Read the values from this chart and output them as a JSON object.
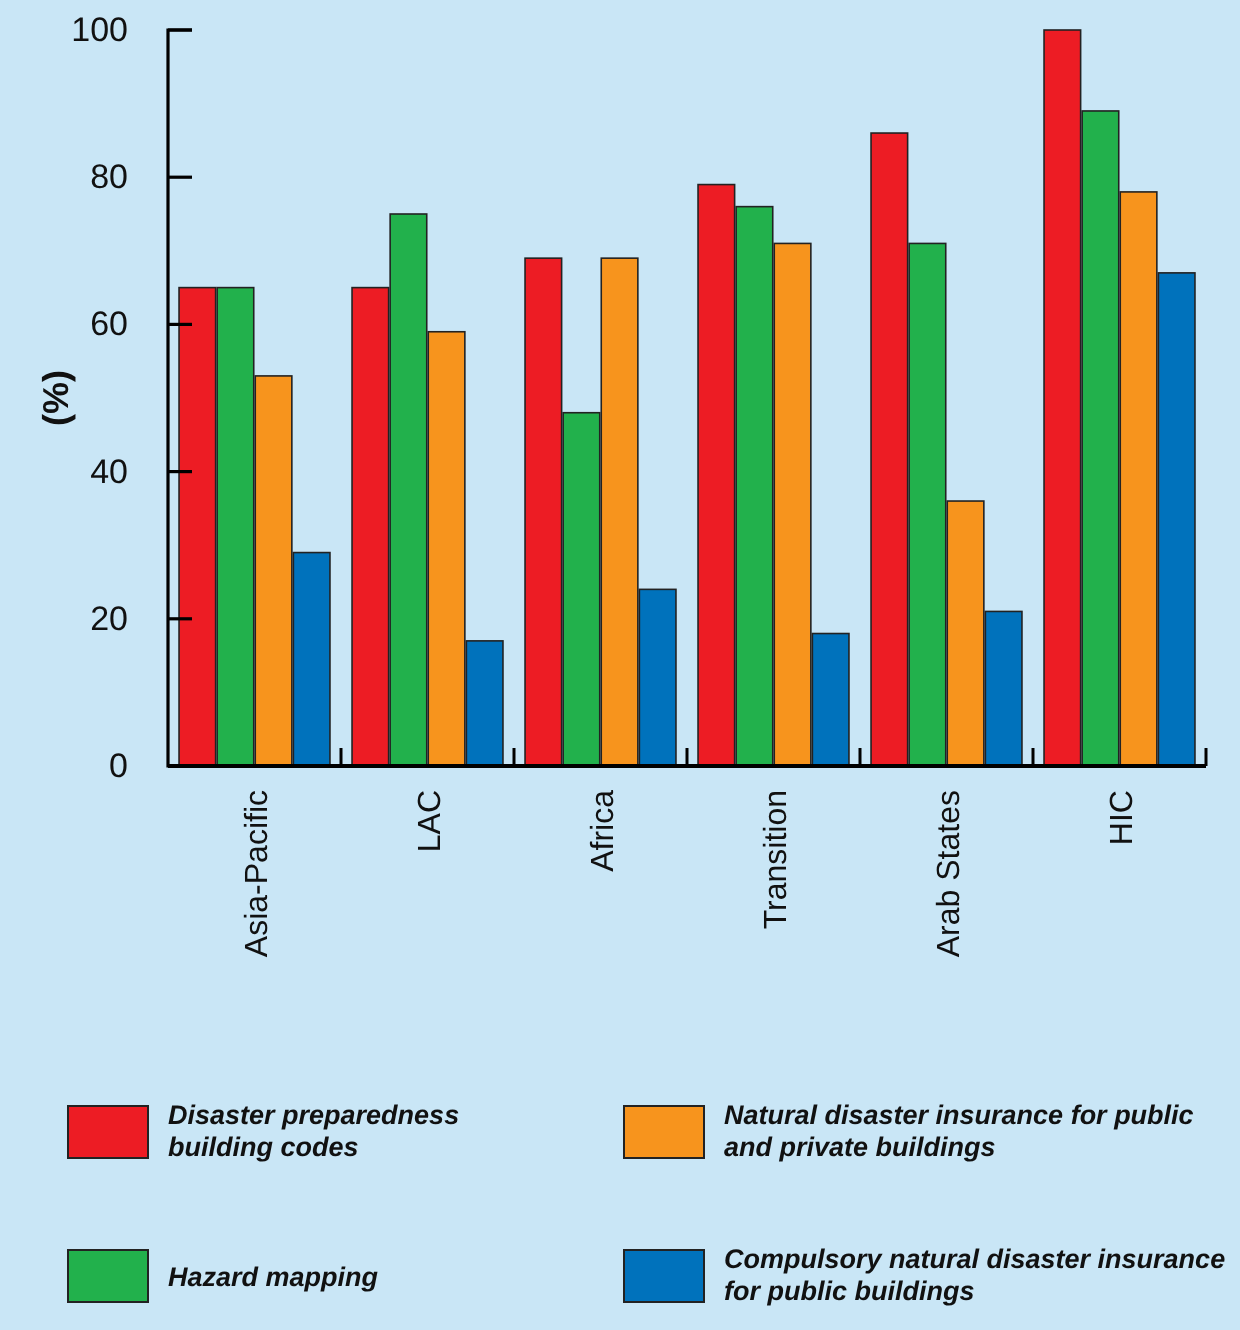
{
  "chart_data": {
    "type": "bar",
    "ylabel": "(%)",
    "categories": [
      "Asia-Pacific",
      "LAC",
      "Africa",
      "Transition",
      "Arab States",
      "HIC"
    ],
    "series": [
      {
        "name": "Disaster preparedness building codes",
        "color": "#ed1c24",
        "values": [
          65,
          65,
          69,
          79,
          86,
          100
        ]
      },
      {
        "name": "Hazard mapping",
        "color": "#22b14c",
        "values": [
          65,
          75,
          48,
          76,
          71,
          89
        ]
      },
      {
        "name": "Natural disaster insurance for public and private buildings",
        "color": "#f7941d",
        "values": [
          53,
          59,
          69,
          71,
          36,
          78
        ]
      },
      {
        "name": "Compulsory natural disaster insurance for public buildings",
        "color": "#0072bc",
        "values": [
          29,
          17,
          24,
          18,
          21,
          67
        ]
      }
    ],
    "ylim": [
      0,
      100
    ],
    "yticks": [
      0,
      20,
      40,
      60,
      80,
      100
    ],
    "legend": "bottom"
  }
}
